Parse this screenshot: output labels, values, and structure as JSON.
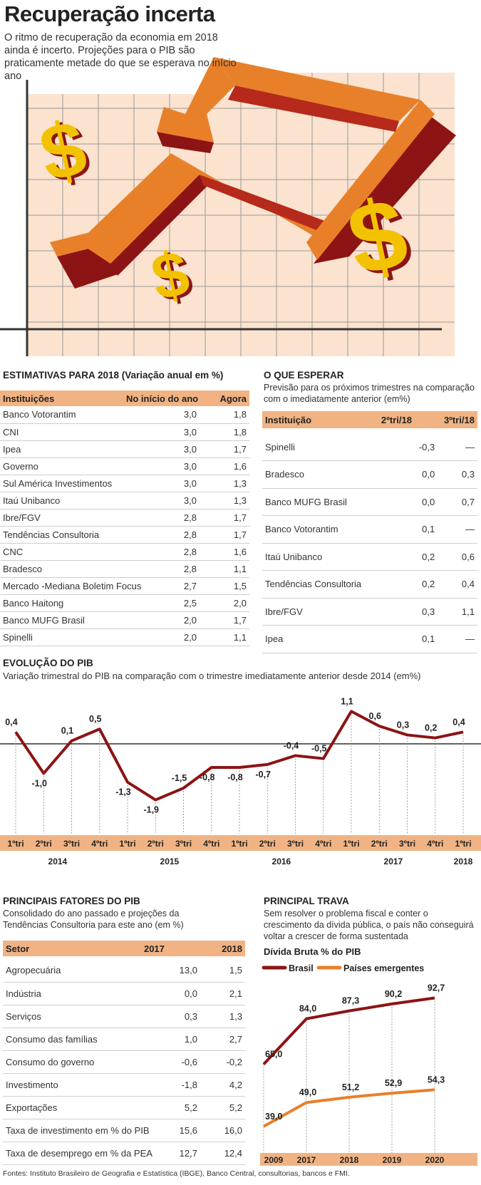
{
  "header": {
    "title": "Recuperação incerta",
    "subtitle": "O ritmo de recuperação da economia em 2018 ainda é incerto. Projeções para o PIB são praticamente metade do que se esperava no início ano"
  },
  "colors": {
    "orange": "#e8802a",
    "dark_red": "#8c1414",
    "peach": "#f1b383",
    "yellow": "#f2c200"
  },
  "estimativas": {
    "title": "ESTIMATIVAS PARA 2018 (Variação anual em %)",
    "columns": [
      "Instituições",
      "No início do ano",
      "Agora"
    ],
    "rows": [
      {
        "name": "Banco Votorantim",
        "inicio": "3,0",
        "agora": "1,8"
      },
      {
        "name": "CNI",
        "inicio": "3,0",
        "agora": "1,8"
      },
      {
        "name": "Ipea",
        "inicio": "3,0",
        "agora": "1,7"
      },
      {
        "name": "Governo",
        "inicio": "3,0",
        "agora": "1,6"
      },
      {
        "name": "Sul América Investimentos",
        "inicio": "3,0",
        "agora": "1,3"
      },
      {
        "name": "Itaú Unibanco",
        "inicio": "3,0",
        "agora": "1,3"
      },
      {
        "name": "Ibre/FGV",
        "inicio": "2,8",
        "agora": "1,7"
      },
      {
        "name": "Tendências Consultoria",
        "inicio": "2,8",
        "agora": "1,7"
      },
      {
        "name": "CNC",
        "inicio": "2,8",
        "agora": "1,6"
      },
      {
        "name": "Bradesco",
        "inicio": "2,8",
        "agora": "1,1"
      },
      {
        "name": "Mercado -Mediana Boletim Focus",
        "inicio": "2,7",
        "agora": "1,5"
      },
      {
        "name": "Banco Haitong",
        "inicio": "2,5",
        "agora": "2,0"
      },
      {
        "name": "Banco MUFG Brasil",
        "inicio": "2,0",
        "agora": "1,7"
      },
      {
        "name": "Spinelli",
        "inicio": "2,0",
        "agora": "1,1"
      }
    ]
  },
  "esperar": {
    "title": "O QUE ESPERAR",
    "subtitle": "Previsão para os próximos trimestres na comparação com o imediatamente anterior (em%)",
    "columns": [
      "Instituição",
      "2ºtri/18",
      "3ºtri/18"
    ],
    "rows": [
      {
        "name": "Spinelli",
        "t2": "-0,3",
        "t3": "—"
      },
      {
        "name": "Bradesco",
        "t2": "0,0",
        "t3": "0,3"
      },
      {
        "name": "Banco MUFG Brasil",
        "t2": "0,0",
        "t3": "0,7"
      },
      {
        "name": "Banco Votorantim",
        "t2": "0,1",
        "t3": "—"
      },
      {
        "name": "Itaú Unibanco",
        "t2": "0,2",
        "t3": "0,6"
      },
      {
        "name": "Tendências Consultoria",
        "t2": "0,2",
        "t3": "0,4"
      },
      {
        "name": "Ibre/FGV",
        "t2": "0,3",
        "t3": "1,1"
      },
      {
        "name": "Ipea",
        "t2": "0,1",
        "t3": "—"
      }
    ]
  },
  "evolucao": {
    "title": "EVOLUÇÃO DO PIB",
    "subtitle": "Variação trimestral do PIB na comparação com o trimestre imediatamente anterior desde 2014 (em%)"
  },
  "fatores": {
    "title": "PRINCIPAIS FATORES DO PIB",
    "subtitle": "Consolidado do ano passado e projeções da Tendências Consultoria para este ano (em %)",
    "columns": [
      "Setor",
      "2017",
      "2018"
    ],
    "rows": [
      {
        "name": "Agropecuária",
        "y2017": "13,0",
        "y2018": "1,5"
      },
      {
        "name": "Indústria",
        "y2017": "0,0",
        "y2018": "2,1"
      },
      {
        "name": "Serviços",
        "y2017": "0,3",
        "y2018": "1,3"
      },
      {
        "name": "Consumo das famílias",
        "y2017": "1,0",
        "y2018": "2,7"
      },
      {
        "name": "Consumo do governo",
        "y2017": "-0,6",
        "y2018": "-0,2"
      },
      {
        "name": "Investimento",
        "y2017": "-1,8",
        "y2018": "4,2"
      },
      {
        "name": "Exportações",
        "y2017": "5,2",
        "y2018": "5,2"
      },
      {
        "name": "Taxa de investimento em % do PIB",
        "y2017": "15,6",
        "y2018": "16,0"
      },
      {
        "name": "Taxa de desemprego em % da PEA",
        "y2017": "12,7",
        "y2018": "12,4"
      }
    ]
  },
  "trava": {
    "title": "PRINCIPAL TRAVA",
    "subtitle": "Sem resolver o problema fiscal e conter o crescimento da dívida pública, o país não conseguirá voltar a crescer de forma sustentada",
    "chart_title": "Dívida Bruta % do PIB"
  },
  "chart_data": [
    {
      "type": "line",
      "title": "EVOLUÇÃO DO PIB",
      "x": [
        "1ºtri",
        "2ºtri",
        "3ºtri",
        "4ºtri",
        "1ºtri",
        "2ºtri",
        "3ºtri",
        "4ºtri",
        "1ºtri",
        "2ºtri",
        "3ºtri",
        "4ºtri",
        "1ºtri",
        "2ºtri",
        "3ºtri",
        "4ºtri",
        "1ºtri"
      ],
      "years": [
        {
          "label": "2014",
          "start": 0,
          "end": 3
        },
        {
          "label": "2015",
          "start": 4,
          "end": 7
        },
        {
          "label": "2016",
          "start": 8,
          "end": 11
        },
        {
          "label": "2017",
          "start": 12,
          "end": 15
        },
        {
          "label": "2018",
          "start": 16,
          "end": 16
        }
      ],
      "values": [
        0.4,
        -1.0,
        0.1,
        0.5,
        -1.3,
        -1.9,
        -1.5,
        -0.8,
        -0.8,
        -0.7,
        -0.4,
        -0.5,
        1.1,
        0.6,
        0.3,
        0.2,
        0.4
      ],
      "labels": [
        "0,4",
        "-1,0",
        "0,1",
        "0,5",
        "-1,3",
        "-1,9",
        "-1,5",
        "-0,8",
        "-0,8",
        "-0,7",
        "-0,4",
        "-0,5",
        "1,1",
        "0,6",
        "0,3",
        "0,2",
        "0,4"
      ],
      "ylim": [
        -2.2,
        1.3
      ]
    },
    {
      "type": "line",
      "title": "Dívida Bruta % do PIB",
      "categories": [
        "2009",
        "2017",
        "2018",
        "2019",
        "2020"
      ],
      "series": [
        {
          "name": "Brasil",
          "values": [
            65.0,
            84.0,
            87.3,
            90.2,
            92.7
          ],
          "labels": [
            "65,0",
            "84,0",
            "87,3",
            "90,2",
            "92,7"
          ],
          "color": "#8c1414"
        },
        {
          "name": "Países emergentes",
          "values": [
            39.0,
            49.0,
            51.2,
            52.9,
            54.3
          ],
          "labels": [
            "39,0",
            "49,0",
            "51,2",
            "52,9",
            "54,3"
          ],
          "color": "#e8802a"
        }
      ],
      "ylim": [
        30,
        100
      ]
    }
  ],
  "footer": {
    "source": "Fontes: Instituto Brasileiro de Geografia e Estatística (IBGE), Banco Central, consultorias, bancos e FMI."
  }
}
